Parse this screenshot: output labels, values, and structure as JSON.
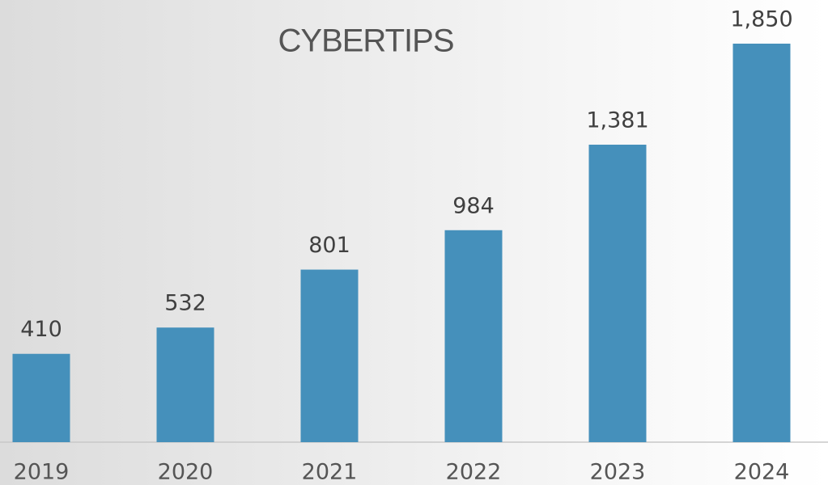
{
  "chart_data": {
    "type": "bar",
    "title": "CYBERTIPS",
    "categories": [
      "2019",
      "2020",
      "2021",
      "2022",
      "2023",
      "2024"
    ],
    "values": [
      410,
      532,
      801,
      984,
      1381,
      1850
    ],
    "value_labels": [
      "410",
      "532",
      "801",
      "984",
      "1,381",
      "1,850"
    ],
    "color": "#4590bb"
  }
}
